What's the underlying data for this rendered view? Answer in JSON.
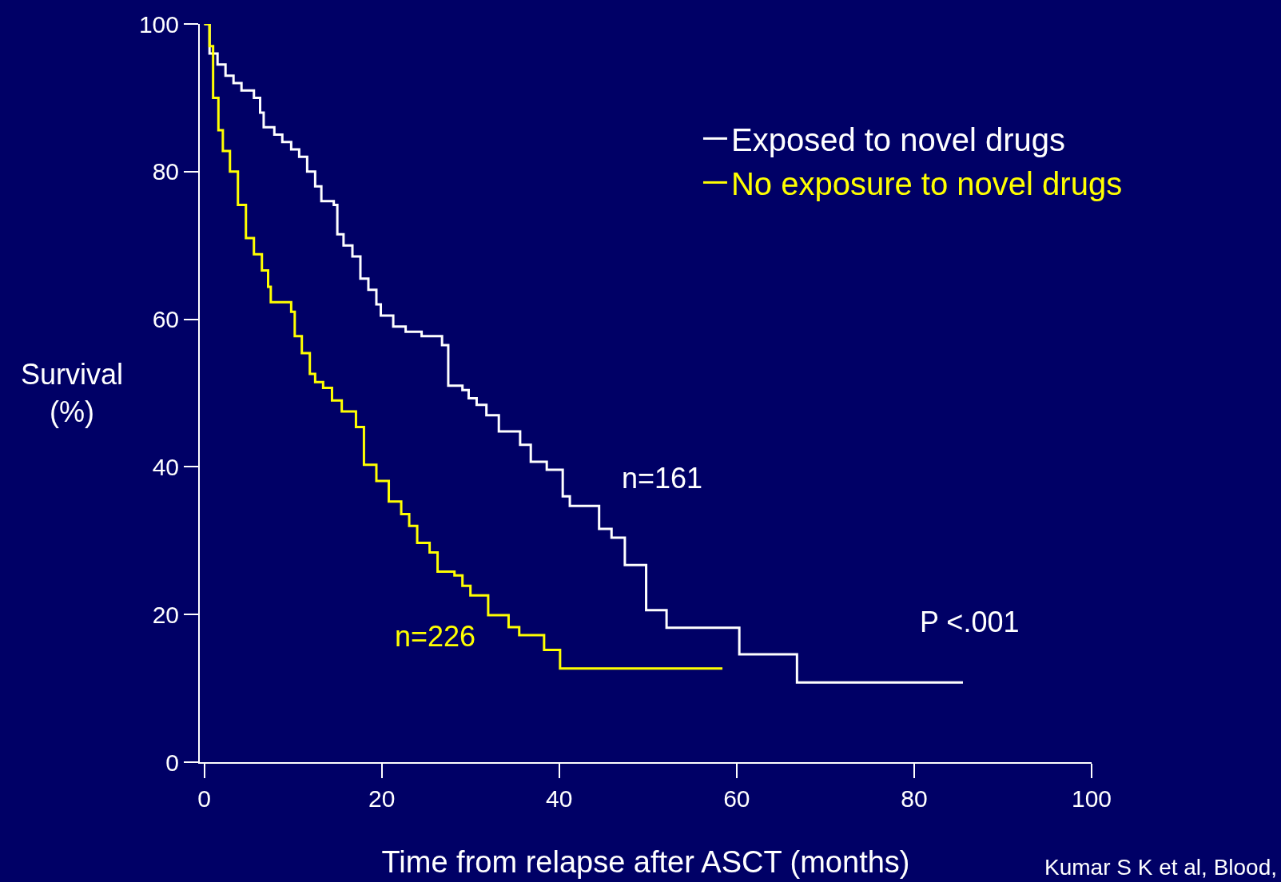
{
  "chart_data": {
    "type": "step",
    "xlabel": "Time from relapse after ASCT (months)",
    "ylabel": "Survival (%)",
    "xlim": [
      -0.5,
      100
    ],
    "xticks": [
      0,
      20,
      40,
      60,
      80,
      100
    ],
    "ylim": [
      0,
      100
    ],
    "yticks": [
      0,
      20,
      40,
      60,
      80,
      100
    ],
    "grid": false,
    "legend": "top right",
    "marker": "none",
    "line_style": "solid",
    "series": [
      {
        "name": "Exposed to novel drugs",
        "color": "#ffffff",
        "x": [
          0,
          0.6,
          1.5,
          2.4,
          3.3,
          4.2,
          5.6,
          6.3,
          6.7,
          7.9,
          8.8,
          9.8,
          10.7,
          11.6,
          12.5,
          13.2,
          14.6,
          15,
          15.7,
          16.7,
          17.6,
          18.5,
          19.4,
          19.9,
          21.3,
          22.7,
          24.5,
          26.8,
          27.5,
          29.1,
          29.8,
          30.7,
          31.8,
          33.2,
          35.6,
          36.8,
          38.6,
          40.4,
          41.2,
          44.5,
          45.9,
          47.4,
          49.8,
          52.1,
          60.3,
          66.8,
          85.5
        ],
        "values": [
          100,
          96,
          94.5,
          93,
          92,
          91,
          90,
          88,
          86,
          85,
          84,
          83,
          82,
          80,
          78,
          76,
          75.5,
          71.5,
          70,
          68.5,
          65.5,
          64,
          62,
          60.5,
          59,
          58.3,
          57.7,
          56.5,
          51,
          50.4,
          49.3,
          48.4,
          47,
          44.8,
          43,
          40.7,
          39.6,
          36,
          34.7,
          31.6,
          30.4,
          26.7,
          20.6,
          18.2,
          14.6,
          10.8,
          10.8
        ]
      },
      {
        "name": "No exposure to novel drugs",
        "color": "#ffff00",
        "x": [
          0,
          0.6,
          1,
          1.6,
          2.1,
          2.9,
          3.8,
          4.7,
          5.6,
          6.5,
          7.2,
          7.5,
          9.8,
          10.2,
          11,
          11.9,
          12.5,
          13.4,
          14.4,
          15.5,
          17.1,
          18,
          19.4,
          20.8,
          22.2,
          23.1,
          24,
          25.4,
          26.3,
          28.2,
          29.1,
          30,
          32,
          34.3,
          35.5,
          38.3,
          40.1,
          58.4
        ],
        "values": [
          100,
          97,
          90,
          85.6,
          82.8,
          80,
          75.5,
          71,
          68.8,
          66.6,
          64.4,
          62.3,
          61,
          57.7,
          55.4,
          52.6,
          51.5,
          50.7,
          49,
          47.5,
          45.4,
          40.3,
          38.1,
          35.3,
          33.6,
          32,
          29.7,
          28.4,
          25.8,
          25.3,
          23.9,
          22.6,
          19.9,
          18.3,
          17.2,
          15.2,
          12.7,
          12.7
        ]
      }
    ],
    "annotations": [
      "n=161",
      "n=226",
      "P <.001",
      "Kumar S K et al, Blood,"
    ]
  }
}
